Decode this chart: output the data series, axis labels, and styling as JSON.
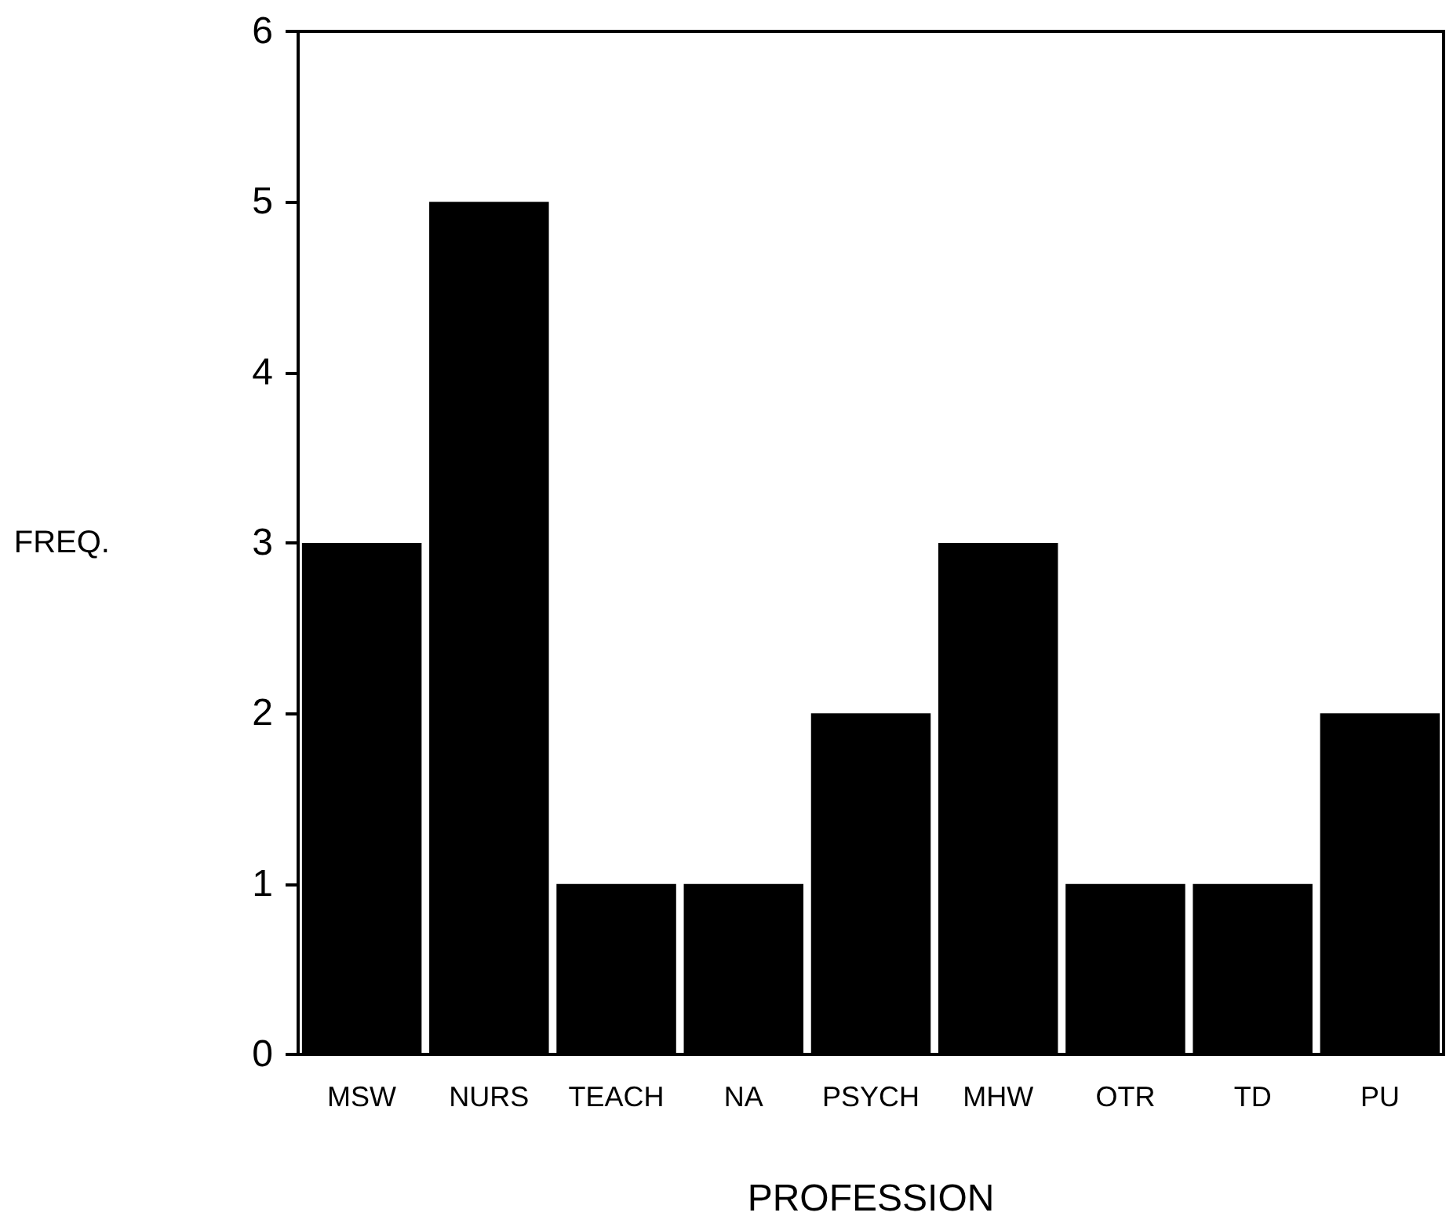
{
  "chart_data": {
    "type": "bar",
    "xlabel": "PROFESSION",
    "ylabel": "FREQ.",
    "categories": [
      "MSW",
      "NURS",
      "TEACH",
      "NA",
      "PSYCH",
      "MHW",
      "OTR",
      "TD",
      "PU"
    ],
    "values": [
      3,
      5,
      1,
      1,
      2,
      3,
      1,
      1,
      2
    ],
    "color": "#000000",
    "ylim": [
      0,
      6
    ],
    "yticks": [
      0,
      1,
      2,
      3,
      4,
      5,
      6
    ],
    "grid": false
  }
}
